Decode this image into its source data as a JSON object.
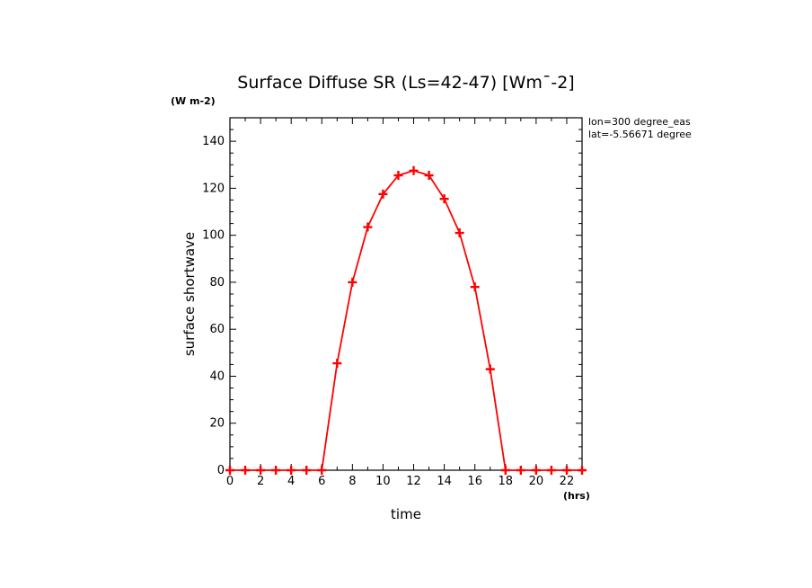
{
  "chart_data": {
    "type": "line",
    "title": "Surface Diffuse SR (Ls=42-47) [Wm¯-2]",
    "y_units": "(W m-2)",
    "x_units": "(hrs)",
    "xlabel": "time",
    "ylabel": "surface shortwave",
    "xlim": [
      0,
      23
    ],
    "ylim": [
      0,
      150
    ],
    "x_ticks": [
      0,
      2,
      4,
      6,
      8,
      10,
      12,
      14,
      16,
      18,
      20,
      22
    ],
    "y_ticks": [
      0,
      20,
      40,
      60,
      80,
      100,
      120,
      140
    ],
    "info": [
      "lon=300 degree_eas",
      "lat=-5.56671 degree"
    ],
    "series": [
      {
        "name": "surface diffuse SR",
        "color": "#ff0000",
        "x": [
          0,
          1,
          2,
          3,
          4,
          5,
          6,
          7,
          8,
          9,
          10,
          11,
          12,
          13,
          14,
          15,
          16,
          17,
          18,
          19,
          20,
          21,
          22,
          23
        ],
        "values": [
          0,
          0,
          0,
          0,
          0,
          0,
          0,
          45.5,
          80,
          103.5,
          117.5,
          125.5,
          127.5,
          125.5,
          115.5,
          101,
          78,
          43,
          0,
          0,
          0,
          0,
          0,
          0
        ]
      }
    ]
  }
}
